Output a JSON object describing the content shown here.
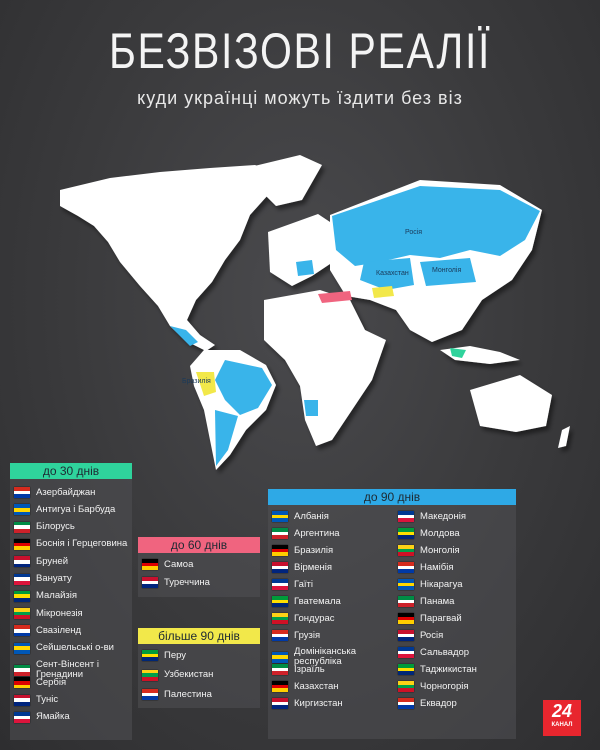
{
  "header": {
    "title": "БЕЗВІЗОВІ РЕАЛІЇ",
    "subtitle": "куди українці можуть їздити без віз"
  },
  "map": {
    "labels": [
      "Росія",
      "Казахстан",
      "Монголія",
      "Бразилія"
    ]
  },
  "legend": {
    "groups": [
      {
        "title": "до 30 днів",
        "color": "#2fd39c",
        "items": [
          "Азербайджан",
          "Антигуа і Барбуда",
          "Білорусь",
          "Боснія і Герцеговина",
          "Бруней",
          "Вануату",
          "Малайзія",
          "Мікронезія",
          "Свазіленд",
          "Сейшельські о-ви",
          "Сент-Вінсент і Гренадини",
          "Сербія",
          "Туніс",
          "Ямайка"
        ]
      },
      {
        "title": "до 60 днів",
        "color": "#f0647f",
        "items": [
          "Самоа",
          "Туреччина"
        ]
      },
      {
        "title": "більше 90 днів",
        "color": "#f2e84a",
        "items": [
          "Перу",
          "Узбекистан",
          "Палестина"
        ]
      },
      {
        "title": "до 90 днів",
        "color": "#2ea9e6",
        "items": [
          "Албанія",
          "Аргентина",
          "Бразилія",
          "Вірменія",
          "Гаїті",
          "Гватемала",
          "Гондурас",
          "Грузія",
          "Домініканська республіка",
          "Ізраїль",
          "Казахстан",
          "Киргизстан",
          "Македонія",
          "Молдова",
          "Монголія",
          "Намібія",
          "Нікарагуа",
          "Панама",
          "Парагвай",
          "Росія",
          "Сальвадор",
          "Таджикистан",
          "Чорногорія",
          "Еквадор"
        ]
      }
    ]
  },
  "logo": {
    "number": "24",
    "text": "КАНАЛ"
  }
}
